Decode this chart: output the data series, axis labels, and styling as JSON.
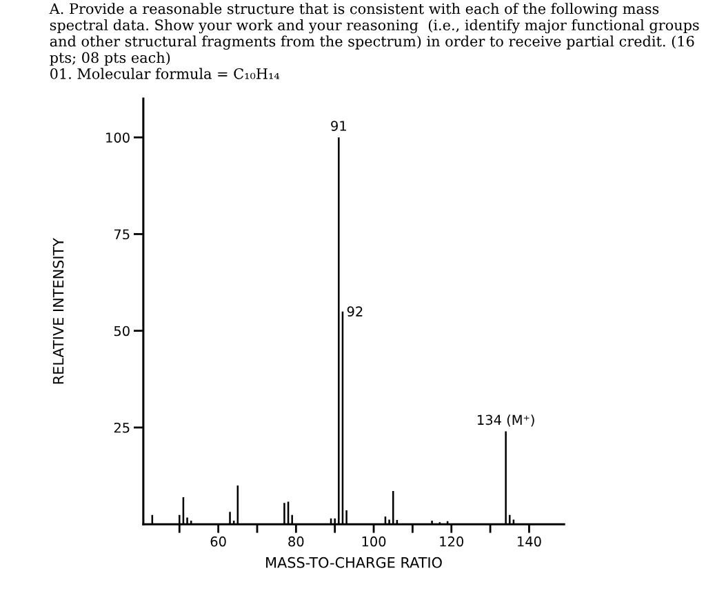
{
  "chart_data": {
    "type": "bar",
    "title": "A. Provide a reasonable structure that is consistent with each of the following mass spectral data. Show your work and your reasoning  (i.e., identify major functional groups and other structural fragments from the spectrum) in order to receive partial credit. (16 pts; 08 pts each)",
    "subtitle": "01. Molecular formula = C₁₀H₁₄",
    "xlabel": "MASS-TO-CHARGE RATIO",
    "ylabel": "RELATIVE INTENSITY",
    "x": [
      43,
      50,
      51,
      52,
      53,
      63,
      64,
      65,
      77,
      78,
      79,
      89,
      90,
      91,
      92,
      93,
      103,
      104,
      105,
      106,
      115,
      117,
      119,
      134,
      135,
      136
    ],
    "series": [
      {
        "color": "#000000",
        "values": [
          2.4,
          2.4,
          7,
          1.7,
          0.9,
          3.2,
          0.9,
          10,
          5.5,
          5.8,
          2.4,
          1.5,
          1.5,
          100,
          55,
          3.6,
          2.0,
          1.2,
          8.6,
          1.1,
          0.9,
          0.5,
          0.8,
          24,
          2.4,
          1.2
        ]
      }
    ],
    "annotations": [
      {
        "text": "91",
        "x": 91,
        "y": 100
      },
      {
        "text": "92",
        "x": 92,
        "y": 55
      },
      {
        "text": "134 (M⁺)",
        "x": 134,
        "y": 24
      }
    ],
    "xlim": [
      40.7,
      149
    ],
    "ylim": [
      0,
      110
    ],
    "xticks": [
      {
        "value": 50,
        "label": null
      },
      60,
      {
        "value": 70,
        "label": null
      },
      80,
      {
        "value": 90,
        "label": null
      },
      100,
      {
        "value": 110,
        "label": null
      },
      120,
      {
        "value": 130,
        "label": null
      },
      140
    ],
    "yticks": [
      25,
      50,
      75,
      100
    ],
    "grid": false,
    "legend": false
  }
}
